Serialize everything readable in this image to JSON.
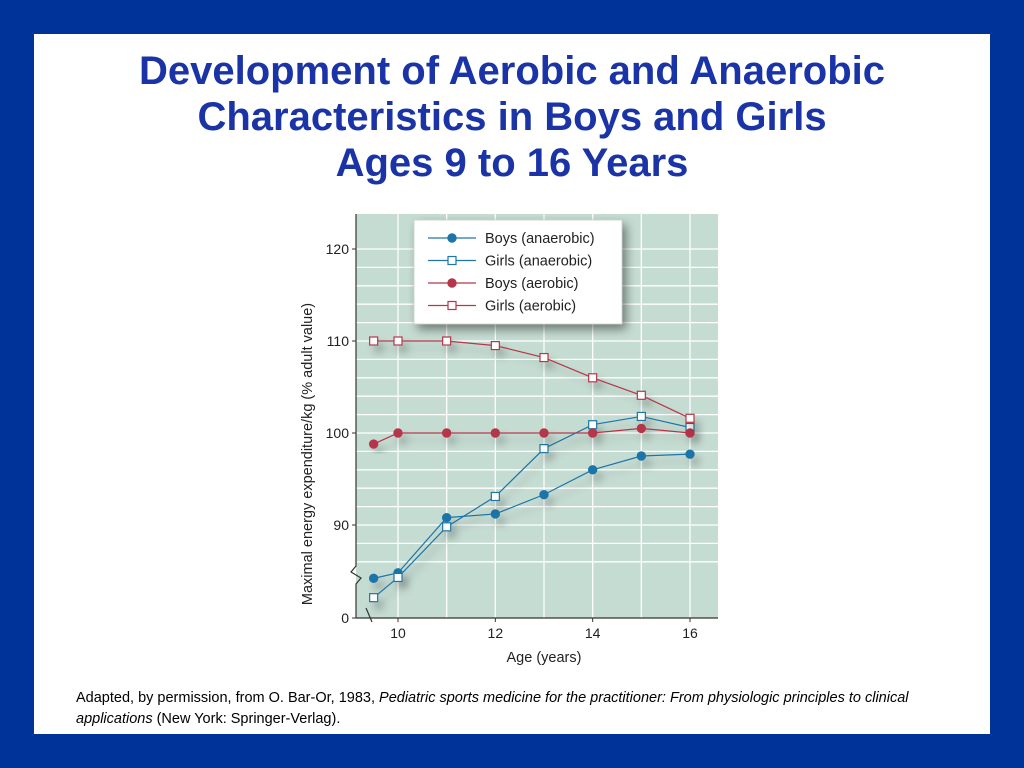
{
  "title": {
    "line1": "Development of Aerobic and Anaerobic",
    "line2": "Characteristics in Boys and Girls",
    "line3": "Ages 9 to 16 Years"
  },
  "caption": {
    "prefix": "Adapted, by permission, from O. Bar-Or, 1983, ",
    "italic": "Pediatric sports medicine for the practitioner: From physiologic principles to clinical applications",
    "suffix": " (New York: Springer-Verlag)."
  },
  "colors": {
    "background": "#003399",
    "title": "#1a33a6",
    "plot_bg": "#c5dcd2",
    "grid": "#ffffff",
    "anaerobic": "#1e74a8",
    "aerobic": "#b5364a"
  },
  "chart_data": {
    "type": "line",
    "xlabel": "Age (years)",
    "ylabel": "Maximal energy expenditure/kg (% adult value)",
    "x_ticks": [
      "10",
      "12",
      "14",
      "16"
    ],
    "y_ticks": [
      "0",
      "90",
      "100",
      "110",
      "120"
    ],
    "xlim": [
      9,
      16
    ],
    "ylim": [
      84,
      120
    ],
    "y_axis_break": "between 0 and 90",
    "grid": true,
    "legend_position": "top-right",
    "x": [
      9.5,
      10,
      11,
      12,
      13,
      14,
      15,
      16
    ],
    "series": [
      {
        "name": "Boys (anaerobic)",
        "marker": "filled-circle",
        "color": "#1e74a8",
        "values": [
          84.2,
          84.8,
          90.8,
          91.2,
          93.3,
          96.0,
          97.5,
          97.7
        ]
      },
      {
        "name": "Girls (anaerobic)",
        "marker": "open-square",
        "color": "#1e74a8",
        "values": [
          82.1,
          84.3,
          89.8,
          93.1,
          98.3,
          100.9,
          101.8,
          100.6
        ]
      },
      {
        "name": "Boys (aerobic)",
        "marker": "filled-circle",
        "color": "#b5364a",
        "values": [
          98.8,
          100.0,
          100.0,
          100.0,
          100.0,
          100.0,
          100.5,
          100.0
        ]
      },
      {
        "name": "Girls (aerobic)",
        "marker": "open-square",
        "color": "#b5364a",
        "values": [
          110.0,
          110.0,
          110.0,
          109.5,
          108.2,
          106.0,
          104.1,
          101.6
        ]
      }
    ]
  }
}
